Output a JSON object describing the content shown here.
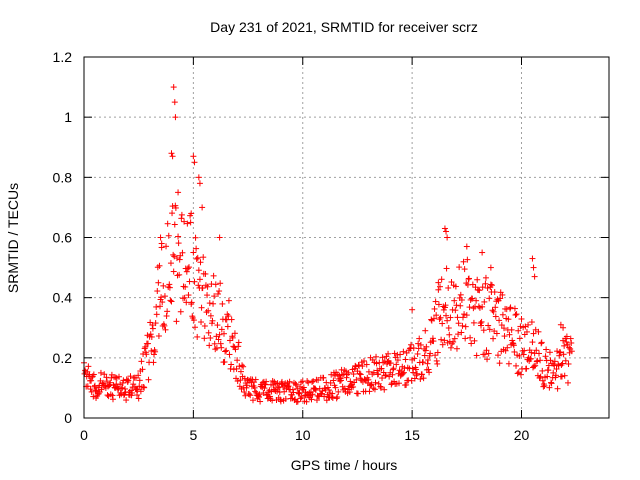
{
  "chart_data": {
    "type": "scatter",
    "title": "Day 231 of 2021, SRMTID for receiver scrz",
    "xlabel": "GPS time / hours",
    "ylabel": "SRMTID / TECUs",
    "xlim": [
      0,
      24
    ],
    "ylim": [
      0,
      1.2
    ],
    "xticks": [
      0,
      5,
      10,
      15,
      20
    ],
    "xtick_labels": [
      "0",
      "5",
      "10",
      "15",
      "20"
    ],
    "yticks": [
      0,
      0.2,
      0.4,
      0.6,
      0.8,
      1,
      1.2
    ],
    "ytick_labels": [
      "0",
      "0.2",
      "0.4",
      "0.6",
      "0.8",
      "1",
      "1.2"
    ],
    "grid": true,
    "marker": "+",
    "color": "#ff0000",
    "series": [
      {
        "name": "SRMTID",
        "x_range": [
          0,
          22.3
        ],
        "step_hours": 0.025,
        "profile": [
          [
            0.0,
            0.12
          ],
          [
            0.5,
            0.1
          ],
          [
            1.0,
            0.1
          ],
          [
            1.5,
            0.09
          ],
          [
            2.0,
            0.09
          ],
          [
            2.5,
            0.1
          ],
          [
            3.0,
            0.2
          ],
          [
            3.5,
            0.38
          ],
          [
            4.0,
            0.48
          ],
          [
            4.5,
            0.45
          ],
          [
            5.0,
            0.45
          ],
          [
            5.5,
            0.35
          ],
          [
            6.0,
            0.3
          ],
          [
            6.5,
            0.28
          ],
          [
            7.0,
            0.18
          ],
          [
            7.5,
            0.09
          ],
          [
            8.0,
            0.08
          ],
          [
            9.0,
            0.08
          ],
          [
            10.0,
            0.08
          ],
          [
            11.0,
            0.09
          ],
          [
            12.0,
            0.11
          ],
          [
            13.0,
            0.13
          ],
          [
            14.0,
            0.14
          ],
          [
            15.0,
            0.16
          ],
          [
            15.5,
            0.18
          ],
          [
            16.0,
            0.25
          ],
          [
            16.5,
            0.33
          ],
          [
            17.0,
            0.32
          ],
          [
            17.5,
            0.35
          ],
          [
            18.0,
            0.32
          ],
          [
            19.0,
            0.28
          ],
          [
            20.0,
            0.22
          ],
          [
            20.5,
            0.25
          ],
          [
            21.0,
            0.16
          ],
          [
            21.5,
            0.14
          ],
          [
            22.0,
            0.18
          ],
          [
            22.3,
            0.17
          ]
        ],
        "spread_ratio": 0.45,
        "outliers": [
          [
            4.1,
            1.1
          ],
          [
            4.15,
            1.05
          ],
          [
            4.18,
            1.0
          ],
          [
            4.0,
            0.88
          ],
          [
            4.05,
            0.87
          ],
          [
            5.0,
            0.87
          ],
          [
            5.05,
            0.85
          ],
          [
            5.25,
            0.8
          ],
          [
            5.3,
            0.78
          ],
          [
            4.3,
            0.75
          ],
          [
            3.5,
            0.6
          ],
          [
            3.55,
            0.58
          ],
          [
            6.2,
            0.6
          ],
          [
            5.4,
            0.7
          ],
          [
            4.9,
            0.68
          ],
          [
            16.5,
            0.63
          ],
          [
            16.55,
            0.62
          ],
          [
            16.6,
            0.6
          ],
          [
            17.5,
            0.57
          ],
          [
            18.2,
            0.55
          ],
          [
            20.5,
            0.53
          ],
          [
            20.55,
            0.5
          ],
          [
            20.6,
            0.47
          ],
          [
            18.6,
            0.5
          ],
          [
            15.0,
            0.36
          ],
          [
            16.2,
            0.45
          ],
          [
            21.8,
            0.31
          ],
          [
            21.9,
            0.3
          ]
        ]
      }
    ]
  }
}
